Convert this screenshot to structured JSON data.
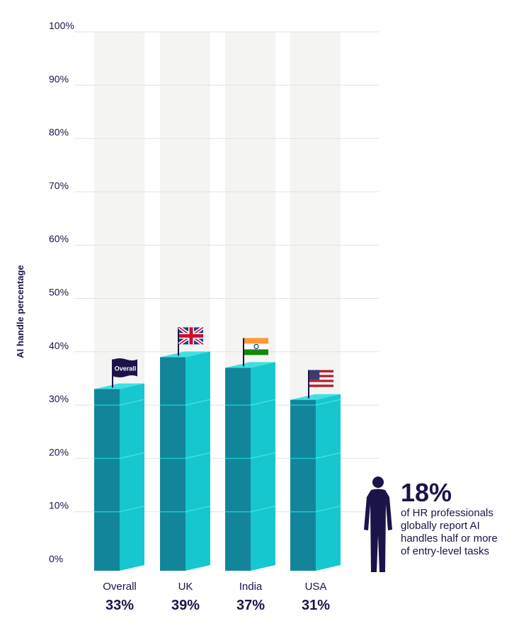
{
  "chart_data": {
    "type": "bar",
    "ylabel": "AI handle percentage",
    "ylim": [
      0,
      100
    ],
    "yticks": [
      "0%",
      "10%",
      "20%",
      "30%",
      "40%",
      "50%",
      "60%",
      "70%",
      "80%",
      "90%",
      "100%"
    ],
    "categories": [
      "Overall",
      "UK",
      "India",
      "USA"
    ],
    "values": [
      33,
      39,
      37,
      31
    ],
    "value_labels": [
      "33%",
      "39%",
      "37%",
      "31%"
    ],
    "flag_labels": [
      "Overall",
      "",
      "",
      ""
    ],
    "grid": true,
    "colors": {
      "front": "#12859b",
      "side": "#17c7cf",
      "top": "#3fe0e0",
      "bg_column": "#f4f4f3",
      "text": "#1a1448"
    }
  },
  "callout": {
    "stat": "18%",
    "lines": [
      "of HR professionals",
      "globally report AI",
      "handles half or more",
      "of entry-level tasks"
    ],
    "icon": "person-icon"
  }
}
